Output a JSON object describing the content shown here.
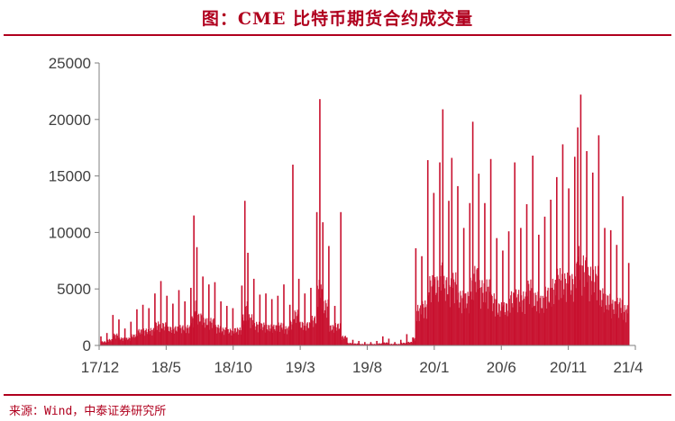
{
  "header": {
    "title": "图：CME 比特币期货合约成交量"
  },
  "footer": {
    "source": "来源：Wind，中泰证券研究所"
  },
  "colors": {
    "accent": "#b0001e",
    "bar": "#c8102e",
    "axis": "#7f7f7f",
    "text": "#404040"
  },
  "chart_data": {
    "type": "bar",
    "title": "",
    "xlabel": "",
    "ylabel": "",
    "ylim": [
      0,
      25000
    ],
    "yticks": [
      0,
      5000,
      10000,
      15000,
      20000,
      25000
    ],
    "grid": false,
    "legend": "none",
    "x_tick_labels": [
      "17/12",
      "18/5",
      "18/10",
      "19/3",
      "19/8",
      "20/1",
      "20/6",
      "20/11",
      "21/4"
    ],
    "x_range": [
      "2017-12-18",
      "2021-05-10"
    ],
    "series": [
      {
        "values": [
          [
            "2017-12-18",
            800
          ],
          [
            "2018-01-01",
            1100
          ],
          [
            "2018-01-15",
            2700
          ],
          [
            "2018-01-29",
            2300
          ],
          [
            "2018-02-12",
            1500
          ],
          [
            "2018-02-26",
            2100
          ],
          [
            "2018-03-12",
            3200
          ],
          [
            "2018-03-26",
            3600
          ],
          [
            "2018-04-09",
            3300
          ],
          [
            "2018-04-23",
            4600
          ],
          [
            "2018-05-07",
            5700
          ],
          [
            "2018-05-21",
            4400
          ],
          [
            "2018-06-04",
            3700
          ],
          [
            "2018-06-18",
            4900
          ],
          [
            "2018-07-02",
            3900
          ],
          [
            "2018-07-16",
            5100
          ],
          [
            "2018-07-23",
            11500
          ],
          [
            "2018-07-30",
            8700
          ],
          [
            "2018-08-13",
            6100
          ],
          [
            "2018-08-27",
            5400
          ],
          [
            "2018-09-10",
            5600
          ],
          [
            "2018-09-24",
            3900
          ],
          [
            "2018-10-08",
            3500
          ],
          [
            "2018-10-22",
            3300
          ],
          [
            "2018-11-12",
            5300
          ],
          [
            "2018-11-19",
            12800
          ],
          [
            "2018-11-26",
            8200
          ],
          [
            "2018-12-10",
            5900
          ],
          [
            "2018-12-24",
            4500
          ],
          [
            "2019-01-07",
            4600
          ],
          [
            "2019-01-21",
            4100
          ],
          [
            "2019-02-04",
            4400
          ],
          [
            "2019-02-18",
            5400
          ],
          [
            "2019-03-04",
            3600
          ],
          [
            "2019-03-11",
            16000
          ],
          [
            "2019-03-25",
            5900
          ],
          [
            "2019-04-08",
            4600
          ],
          [
            "2019-04-22",
            5100
          ],
          [
            "2019-05-06",
            11800
          ],
          [
            "2019-05-13",
            21800
          ],
          [
            "2019-05-20",
            10900
          ],
          [
            "2019-06-03",
            8800
          ],
          [
            "2019-06-17",
            3500
          ],
          [
            "2019-07-01",
            11800
          ],
          [
            "2019-07-15",
            700
          ],
          [
            "2019-07-29",
            500
          ],
          [
            "2019-08-12",
            400
          ],
          [
            "2019-08-26",
            300
          ],
          [
            "2019-09-09",
            300
          ],
          [
            "2019-09-23",
            400
          ],
          [
            "2019-10-07",
            800
          ],
          [
            "2019-10-21",
            600
          ],
          [
            "2019-11-04",
            300
          ],
          [
            "2019-11-18",
            500
          ],
          [
            "2019-12-02",
            1000
          ],
          [
            "2019-12-16",
            700
          ],
          [
            "2019-12-23",
            8600
          ],
          [
            "2020-01-06",
            7900
          ],
          [
            "2020-01-20",
            16400
          ],
          [
            "2020-02-03",
            13500
          ],
          [
            "2020-02-17",
            16200
          ],
          [
            "2020-02-24",
            20900
          ],
          [
            "2020-03-09",
            12800
          ],
          [
            "2020-03-16",
            16600
          ],
          [
            "2020-03-30",
            14100
          ],
          [
            "2020-04-13",
            10400
          ],
          [
            "2020-04-27",
            12600
          ],
          [
            "2020-05-04",
            19800
          ],
          [
            "2020-05-18",
            15200
          ],
          [
            "2020-06-01",
            12600
          ],
          [
            "2020-06-15",
            16500
          ],
          [
            "2020-06-29",
            9500
          ],
          [
            "2020-07-13",
            8400
          ],
          [
            "2020-07-27",
            10100
          ],
          [
            "2020-08-10",
            16200
          ],
          [
            "2020-08-24",
            10400
          ],
          [
            "2020-09-07",
            12500
          ],
          [
            "2020-09-21",
            16800
          ],
          [
            "2020-10-05",
            9800
          ],
          [
            "2020-10-19",
            11400
          ],
          [
            "2020-11-02",
            12900
          ],
          [
            "2020-11-16",
            14900
          ],
          [
            "2020-11-30",
            17800
          ],
          [
            "2020-12-14",
            13900
          ],
          [
            "2020-12-28",
            16700
          ],
          [
            "2021-01-04",
            19300
          ],
          [
            "2021-01-11",
            22200
          ],
          [
            "2021-01-25",
            17200
          ],
          [
            "2021-02-08",
            15300
          ],
          [
            "2021-02-22",
            18600
          ],
          [
            "2021-03-08",
            10400
          ],
          [
            "2021-03-22",
            10200
          ],
          [
            "2021-04-05",
            8900
          ],
          [
            "2021-04-19",
            13200
          ],
          [
            "2021-05-03",
            7300
          ]
        ]
      }
    ]
  }
}
